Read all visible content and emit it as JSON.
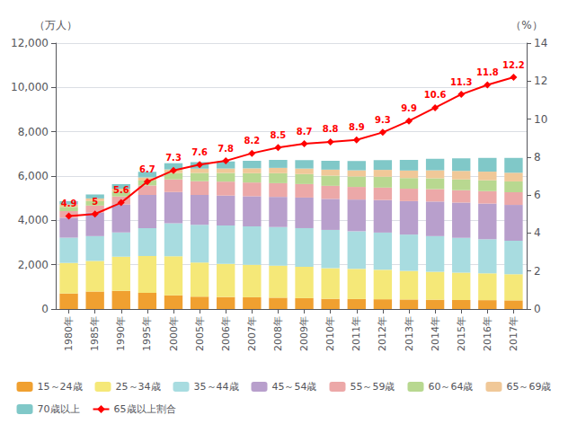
{
  "chart_data": {
    "type": "bar",
    "stacked": true,
    "grid": true,
    "legend": "bottom",
    "categories": [
      "1980年",
      "1985年",
      "1990年",
      "1995年",
      "2000年",
      "2005年",
      "2006年",
      "2007年",
      "2008年",
      "2009年",
      "2010年",
      "2011年",
      "2012年",
      "2013年",
      "2014年",
      "2015年",
      "2016年",
      "2017年"
    ],
    "ylabel": "（万人）",
    "y2label": "（%）",
    "ylim": [
      0,
      12000
    ],
    "yticks": [
      0,
      {
        "value": 2000,
        "label": "2,000"
      },
      {
        "value": 4000,
        "label": "4,000"
      },
      {
        "value": 6000,
        "label": "6,000"
      },
      {
        "value": 8000,
        "label": "8,000"
      },
      {
        "value": 10000,
        "label": "10,000"
      },
      {
        "value": 12000,
        "label": "12,000"
      }
    ],
    "y2lim": [
      0,
      14
    ],
    "y2ticks": [
      0,
      2,
      4,
      6,
      8,
      10,
      12,
      14
    ],
    "series": [
      {
        "name": "15～24歳",
        "color": "#F0A030",
        "values": [
          700,
          790,
          820,
          730,
          620,
          560,
          540,
          530,
          510,
          490,
          460,
          450,
          440,
          430,
          420,
          410,
          400,
          390
        ]
      },
      {
        "name": "25～34歳",
        "color": "#F5E878",
        "values": [
          1380,
          1380,
          1540,
          1660,
          1760,
          1540,
          1500,
          1470,
          1450,
          1420,
          1380,
          1360,
          1330,
          1290,
          1260,
          1230,
          1210,
          1180
        ]
      },
      {
        "name": "35～44歳",
        "color": "#A8DCE0",
        "values": [
          1140,
          1120,
          1100,
          1260,
          1490,
          1700,
          1730,
          1730,
          1740,
          1740,
          1730,
          1700,
          1680,
          1640,
          1610,
          1570,
          1540,
          1510
        ]
      },
      {
        "name": "45～54歳",
        "color": "#B89FCC",
        "values": [
          900,
          1060,
          1260,
          1500,
          1410,
          1350,
          1350,
          1360,
          1360,
          1380,
          1400,
          1430,
          1470,
          1510,
          1560,
          1590,
          1610,
          1620
        ]
      },
      {
        "name": "55～59歳",
        "color": "#ECA8A8",
        "values": [
          300,
          320,
          360,
          420,
          570,
          620,
          630,
          620,
          620,
          610,
          590,
          570,
          560,
          560,
          560,
          560,
          560,
          570
        ]
      },
      {
        "name": "60～64歳",
        "color": "#B8D890",
        "values": [
          190,
          200,
          220,
          230,
          290,
          370,
          390,
          420,
          450,
          450,
          460,
          470,
          490,
          480,
          490,
          490,
          490,
          490
        ]
      },
      {
        "name": "65～69歳",
        "color": "#F0C898",
        "values": [
          110,
          120,
          130,
          140,
          160,
          190,
          200,
          220,
          240,
          250,
          270,
          280,
          310,
          340,
          360,
          380,
          390,
          390
        ]
      },
      {
        "name": "70歳以上",
        "color": "#80C8C8",
        "values": [
          150,
          180,
          210,
          250,
          280,
          300,
          320,
          340,
          360,
          380,
          400,
          420,
          440,
          480,
          520,
          570,
          620,
          670
        ]
      },
      {
        "name": "65歳以上割合",
        "type": "line",
        "axis": "y2",
        "color": "#FF0000",
        "marker": "diamond",
        "data_labels": true,
        "values": [
          4.9,
          5.0,
          5.6,
          6.7,
          7.3,
          7.6,
          7.8,
          8.2,
          8.5,
          8.7,
          8.8,
          8.9,
          9.3,
          9.9,
          10.6,
          11.3,
          11.8,
          12.2
        ]
      }
    ]
  }
}
